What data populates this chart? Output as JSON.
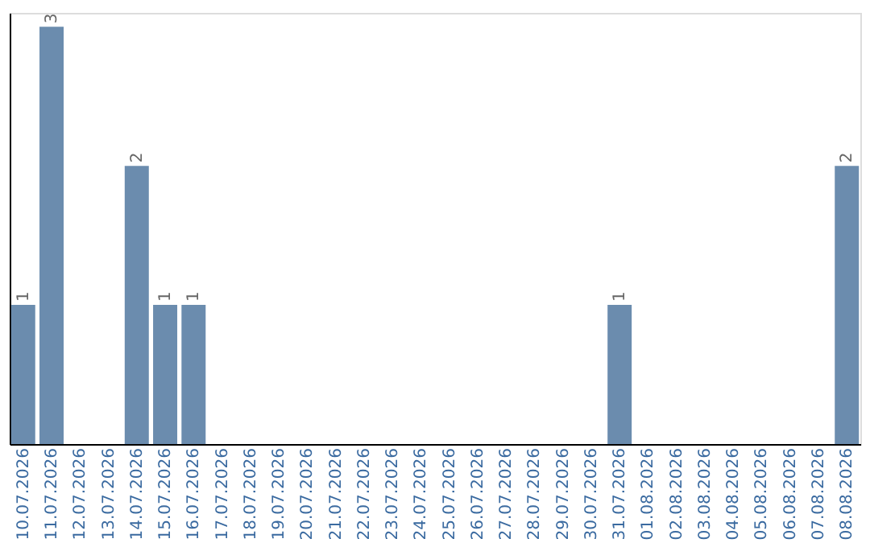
{
  "chart_data": {
    "type": "bar",
    "categories": [
      "10.07.2026",
      "11.07.2026",
      "12.07.2026",
      "13.07.2026",
      "14.07.2026",
      "15.07.2026",
      "16.07.2026",
      "17.07.2026",
      "18.07.2026",
      "19.07.2026",
      "20.07.2026",
      "21.07.2026",
      "22.07.2026",
      "23.07.2026",
      "24.07.2026",
      "25.07.2026",
      "26.07.2026",
      "27.07.2026",
      "28.07.2026",
      "29.07.2026",
      "30.07.2026",
      "31.07.2026",
      "01.08.2026",
      "02.08.2026",
      "03.08.2026",
      "04.08.2026",
      "05.08.2026",
      "06.08.2026",
      "07.08.2026",
      "08.08.2026"
    ],
    "values": [
      1,
      3,
      0,
      0,
      2,
      1,
      1,
      0,
      0,
      0,
      0,
      0,
      0,
      0,
      0,
      0,
      0,
      0,
      0,
      0,
      0,
      1,
      0,
      0,
      0,
      0,
      0,
      0,
      0,
      2
    ],
    "value_labels": [
      "1",
      "3",
      null,
      null,
      "2",
      "1",
      "1",
      null,
      null,
      null,
      null,
      null,
      null,
      null,
      null,
      null,
      null,
      null,
      null,
      null,
      null,
      "1",
      null,
      null,
      null,
      null,
      null,
      null,
      null,
      "2"
    ],
    "color": "#6b8cae",
    "ylim": [
      0,
      3.1
    ],
    "tick_labels": "x",
    "grid": false
  }
}
